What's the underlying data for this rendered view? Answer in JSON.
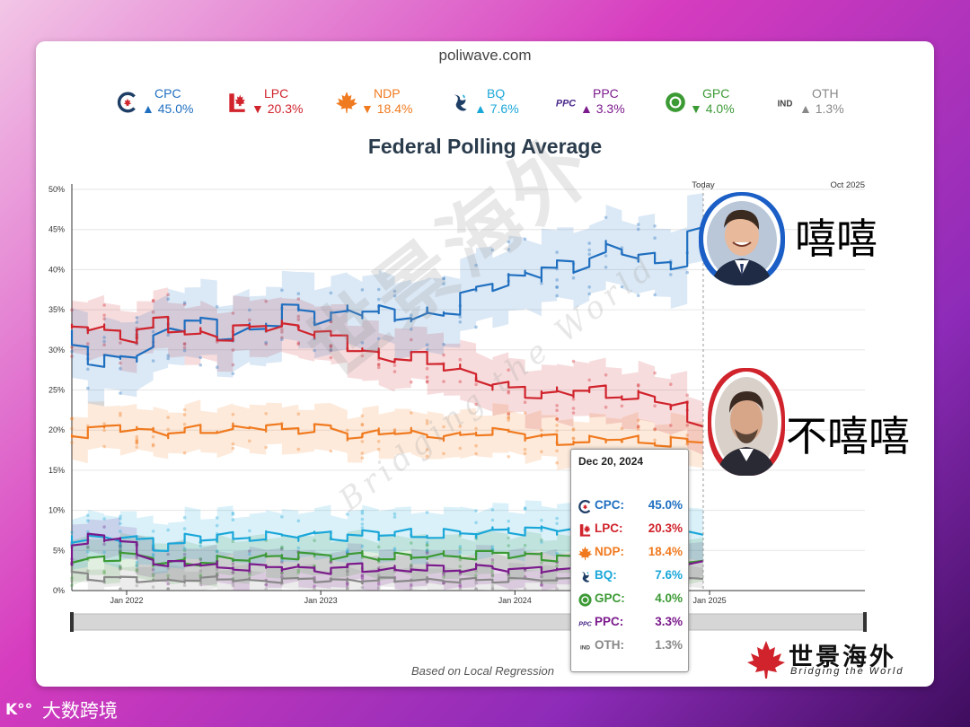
{
  "site": "poliwave.com",
  "legend": [
    {
      "key": "CPC",
      "label": "CPC",
      "arrow": "▲",
      "value": "45.0%",
      "color": "#1f6fc0",
      "icon": "cpc-logo-icon"
    },
    {
      "key": "LPC",
      "label": "LPC",
      "arrow": "▼",
      "value": "20.3%",
      "color": "#d0232c",
      "icon": "lpc-logo-icon"
    },
    {
      "key": "NDP",
      "label": "NDP",
      "arrow": "▼",
      "value": "18.4%",
      "color": "#f07a1f",
      "icon": "ndp-logo-icon"
    },
    {
      "key": "BQ",
      "label": "BQ",
      "arrow": "▲",
      "value": "7.6%",
      "color": "#1aa7d9",
      "icon": "bq-logo-icon"
    },
    {
      "key": "PPC",
      "label": "PPC",
      "arrow": "▲",
      "value": "3.3%",
      "color": "#7b1a8c",
      "icon": "ppc-logo-icon"
    },
    {
      "key": "GPC",
      "label": "GPC",
      "arrow": "▼",
      "value": "4.0%",
      "color": "#3c9a35",
      "icon": "gpc-logo-icon"
    },
    {
      "key": "OTH",
      "label": "OTH",
      "arrow": "▲",
      "value": "1.3%",
      "color": "#888888",
      "icon": "ind-logo-icon"
    }
  ],
  "ind_icon_text": "IND",
  "ppc_icon_text": "PPC",
  "chart_data": {
    "type": "line",
    "title": "Federal Polling Average",
    "y_ticks": [
      "0%",
      "5%",
      "10%",
      "15%",
      "20%",
      "25%",
      "30%",
      "35%",
      "40%",
      "45%",
      "50%"
    ],
    "ylim": [
      0,
      50
    ],
    "x_ticks": [
      "Jan 2022",
      "Jan 2023",
      "Jan 2024",
      "Jan 2025"
    ],
    "xlim": [
      "2021-09-20",
      "2025-10-20"
    ],
    "today_label": "Today",
    "today_date": "2024-12-20",
    "end_label": "Oct 2025",
    "x_months": [
      0,
      2,
      4,
      6,
      8,
      10,
      12,
      14,
      16,
      18,
      20,
      22,
      24,
      26,
      28,
      30,
      32,
      34,
      36,
      38,
      39
    ],
    "x_months_note": "months since 2021-09",
    "series": [
      {
        "name": "CPC",
        "color": "#1f6fc0",
        "values": [
          32,
          29,
          28.5,
          32,
          34,
          31.5,
          32.5,
          35,
          34,
          35,
          34.5,
          34,
          35,
          38,
          39,
          40,
          40.5,
          43,
          41,
          41,
          45
        ],
        "band": 4.5
      },
      {
        "name": "LPC",
        "color": "#d0232c",
        "values": [
          32.5,
          33,
          31.5,
          33.5,
          32,
          31.5,
          33,
          33,
          32,
          30.5,
          29,
          29,
          28,
          26,
          25,
          24.5,
          25,
          24.5,
          24,
          23,
          20.3
        ],
        "band": 3.5
      },
      {
        "name": "NDP",
        "color": "#f07a1f",
        "values": [
          19,
          20,
          20.5,
          19.5,
          20,
          20,
          20.5,
          20,
          20.5,
          19,
          20,
          19.5,
          19,
          20,
          19.5,
          19,
          18.5,
          19,
          18.5,
          18.5,
          18.4
        ],
        "band": 2.8
      },
      {
        "name": "BQ",
        "color": "#1aa7d9",
        "values": [
          6.8,
          6.5,
          6.6,
          5.5,
          6.5,
          6.5,
          6.8,
          6.8,
          7,
          6.8,
          7,
          7,
          7,
          7.3,
          7.6,
          7.5,
          7.8,
          7.5,
          7.7,
          7.7,
          7.6
        ],
        "band": 3
      },
      {
        "name": "GPC",
        "color": "#3c9a35",
        "values": [
          2.8,
          4,
          4.5,
          3.5,
          3.5,
          3.8,
          4,
          4.5,
          4.2,
          4.5,
          4,
          4.3,
          4.3,
          4.5,
          4.6,
          4.2,
          4.4,
          4.5,
          4.2,
          4.3,
          4.0
        ],
        "band": 2.5
      },
      {
        "name": "PPC",
        "color": "#7b1a8c",
        "values": [
          3.5,
          7,
          6,
          3,
          3.5,
          3,
          2.8,
          3,
          2.5,
          3,
          2.5,
          2.8,
          2.5,
          3,
          2.5,
          2.7,
          2.5,
          2.6,
          2.8,
          3,
          3.3
        ],
        "band": 2.2
      },
      {
        "name": "OTH",
        "color": "#888888",
        "values": [
          3,
          1.5,
          1.5,
          1.2,
          1.3,
          1.5,
          1.2,
          1.3,
          1.4,
          1.2,
          1.3,
          1.4,
          1.2,
          1.3,
          1.4,
          1.2,
          1.3,
          1.4,
          1.3,
          1.3,
          1.3
        ],
        "band": 1.5
      }
    ]
  },
  "tooltip": {
    "date": "Dec 20, 2024",
    "rows": [
      {
        "label": "CPC:",
        "value": "45.0%",
        "color": "#1f6fc0",
        "icon": "cpc-logo-icon"
      },
      {
        "label": "LPC:",
        "value": "20.3%",
        "color": "#d0232c",
        "icon": "lpc-logo-icon"
      },
      {
        "label": "NDP:",
        "value": "18.4%",
        "color": "#f07a1f",
        "icon": "ndp-logo-icon"
      },
      {
        "label": "BQ:",
        "value": "7.6%",
        "color": "#1aa7d9",
        "icon": "bq-logo-icon"
      },
      {
        "label": "GPC:",
        "value": "4.0%",
        "color": "#3c9a35",
        "icon": "gpc-logo-icon"
      },
      {
        "label": "PPC:",
        "value": "3.3%",
        "color": "#7b1a8c",
        "icon": "ppc-logo-icon"
      },
      {
        "label": "OTH:",
        "value": "1.3%",
        "color": "#888888",
        "icon": "ind-logo-icon"
      }
    ]
  },
  "footnote": "Based on Local Regression",
  "brand": {
    "cn": "世景海外",
    "en": "Bridging the World"
  },
  "watermark": {
    "cn": "世景海外",
    "en": "Bridging the World"
  },
  "annotations": {
    "top_label": "嘻嘻",
    "bottom_label": "不嘻嘻"
  },
  "bottom_brand": "大数跨境"
}
